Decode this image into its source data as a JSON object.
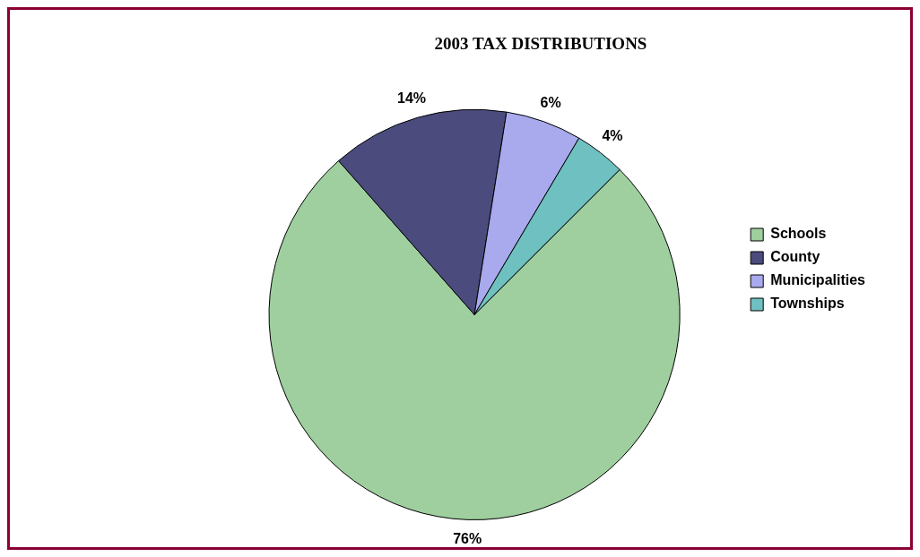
{
  "chart_data": {
    "type": "pie",
    "title": "2003 TAX DISTRIBUTIONS",
    "categories": [
      "Schools",
      "County",
      "Municipalities",
      "Townships"
    ],
    "values": [
      76,
      14,
      6,
      4
    ],
    "value_labels": [
      "76%",
      "14%",
      "6%",
      "4%"
    ],
    "colors": [
      "#9fcf9f",
      "#4b4b7d",
      "#a9a9ee",
      "#6fc0c0"
    ],
    "legend": "right"
  }
}
